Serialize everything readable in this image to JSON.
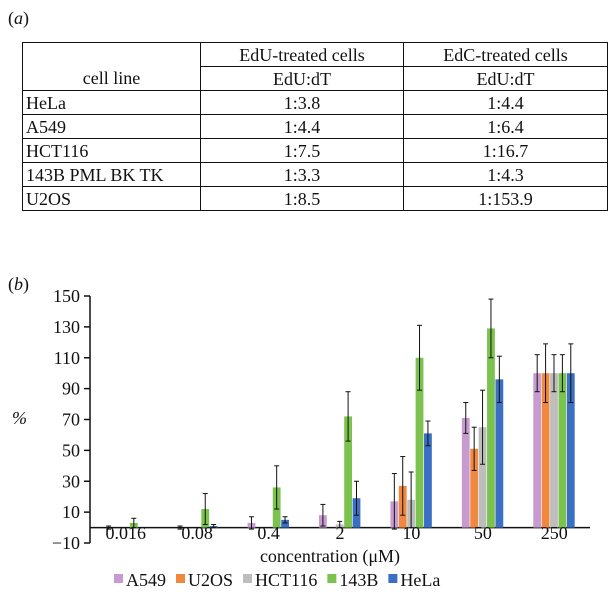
{
  "panel_a": {
    "label_paren_open": "(",
    "label_letter": "a",
    "label_paren_close": ")",
    "headers": {
      "col1": "cell line",
      "col2_top": "EdU-treated cells",
      "col2_sub": "EdU:dT",
      "col3_top": "EdC-treated cells",
      "col3_sub": "EdU:dT"
    },
    "rows": [
      {
        "cell_line": "HeLa",
        "edu": "1:3.8",
        "edc": "1:4.4"
      },
      {
        "cell_line": "A549",
        "edu": "1:4.4",
        "edc": "1:6.4"
      },
      {
        "cell_line": "HCT116",
        "edu": "1:7.5",
        "edc": "1:16.7"
      },
      {
        "cell_line": "143B PML BK TK",
        "edu": "1:3.3",
        "edc": "1:4.3"
      },
      {
        "cell_line": "U2OS",
        "edu": "1:8.5",
        "edc": "1:153.9"
      }
    ]
  },
  "panel_b": {
    "label_paren_open": "(",
    "label_letter": "b",
    "label_paren_close": ")"
  },
  "chart_data": {
    "type": "bar",
    "xlabel": "concentration (μM)",
    "ylabel": "%",
    "ylim": [
      -10,
      150
    ],
    "yticks": [
      -10,
      10,
      30,
      50,
      70,
      90,
      110,
      130,
      150
    ],
    "grid": false,
    "legend_position": "bottom",
    "categories": [
      "0.016",
      "0.08",
      "0.4",
      "2",
      "10",
      "50",
      "250"
    ],
    "series": [
      {
        "name": "A549",
        "color": "#c79bd0",
        "values": [
          0,
          0,
          3,
          8,
          17,
          71,
          100
        ],
        "errors": [
          1,
          1,
          4,
          7,
          18,
          10,
          12
        ]
      },
      {
        "name": "U2OS",
        "color": "#f0883e",
        "values": [
          0,
          0,
          0,
          0,
          27,
          51,
          100
        ],
        "errors": [
          0,
          0,
          0,
          0,
          19,
          14,
          19
        ]
      },
      {
        "name": "HCT116",
        "color": "#bdbdbd",
        "values": [
          0,
          0,
          0,
          2,
          18,
          65,
          100
        ],
        "errors": [
          0,
          0,
          0,
          2,
          18,
          24,
          12
        ]
      },
      {
        "name": "143B",
        "color": "#7cc24e",
        "values": [
          3,
          12,
          26,
          72,
          110,
          129,
          100
        ],
        "errors": [
          3,
          10,
          14,
          16,
          21,
          19,
          12
        ]
      },
      {
        "name": "HeLa",
        "color": "#3a6fc4",
        "values": [
          0,
          1,
          5,
          19,
          61,
          96,
          100
        ],
        "errors": [
          0,
          1,
          2,
          11,
          8,
          15,
          19
        ]
      }
    ]
  }
}
